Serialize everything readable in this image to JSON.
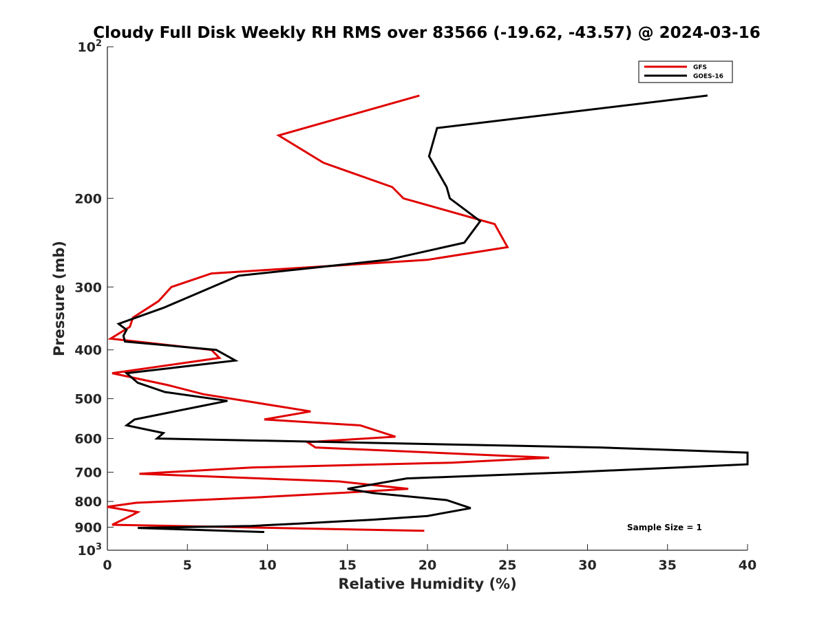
{
  "chart_data": {
    "type": "line",
    "title": "Cloudy Full Disk Weekly RH RMS over 83566 (-19.62, -43.57) @ 2024-03-16",
    "xlabel": "Relative Humidity (%)",
    "ylabel": "Pressure (mb)",
    "xlim": [
      0,
      40
    ],
    "ylim": [
      100,
      1000
    ],
    "yscale": "log",
    "y_reversed": true,
    "grid": false,
    "legend_position": "top-right",
    "x_ticks": [
      0,
      5,
      10,
      15,
      20,
      25,
      30,
      35,
      40
    ],
    "x_tick_labels": [
      "0",
      "5",
      "10",
      "15",
      "20",
      "25",
      "30",
      "35",
      "40"
    ],
    "y_ticks": [
      100,
      200,
      300,
      400,
      500,
      600,
      700,
      800,
      900,
      1000
    ],
    "y_tick_labels": [
      {
        "base": "10",
        "exp": "2"
      },
      {
        "base": "200",
        "exp": ""
      },
      {
        "base": "300",
        "exp": ""
      },
      {
        "base": "400",
        "exp": ""
      },
      {
        "base": "500",
        "exp": ""
      },
      {
        "base": "600",
        "exp": ""
      },
      {
        "base": "700",
        "exp": ""
      },
      {
        "base": "800",
        "exp": ""
      },
      {
        "base": "900",
        "exp": ""
      },
      {
        "base": "10",
        "exp": "3"
      }
    ],
    "annotation": "Sample Size = 1",
    "series": [
      {
        "name": "GFS",
        "color": "#e00000",
        "points": [
          [
            19.5,
            125
          ],
          [
            10.7,
            150
          ],
          [
            13.5,
            170
          ],
          [
            17.8,
            190
          ],
          [
            18.5,
            200
          ],
          [
            24.2,
            225
          ],
          [
            25.0,
            250
          ],
          [
            20.0,
            265
          ],
          [
            6.5,
            282
          ],
          [
            4.0,
            300
          ],
          [
            3.2,
            320
          ],
          [
            1.6,
            345
          ],
          [
            1.4,
            360
          ],
          [
            0.2,
            380
          ],
          [
            6.5,
            400
          ],
          [
            7.0,
            415
          ],
          [
            0.3,
            445
          ],
          [
            3.8,
            470
          ],
          [
            6.0,
            490
          ],
          [
            12.7,
            530
          ],
          [
            9.8,
            550
          ],
          [
            15.8,
            565
          ],
          [
            18.0,
            595
          ],
          [
            12.5,
            610
          ],
          [
            13.0,
            625
          ],
          [
            27.6,
            655
          ],
          [
            21.5,
            670
          ],
          [
            9.0,
            685
          ],
          [
            2.0,
            705
          ],
          [
            14.5,
            730
          ],
          [
            18.8,
            755
          ],
          [
            16.0,
            765
          ],
          [
            9.5,
            785
          ],
          [
            1.8,
            805
          ],
          [
            0.0,
            820
          ],
          [
            1.9,
            840
          ],
          [
            1.6,
            850
          ],
          [
            0.3,
            890
          ],
          [
            19.8,
            915
          ]
        ]
      },
      {
        "name": "GOES-16",
        "color": "#000000",
        "points": [
          [
            37.5,
            125
          ],
          [
            20.6,
            145
          ],
          [
            20.1,
            165
          ],
          [
            21.2,
            190
          ],
          [
            21.4,
            200
          ],
          [
            23.3,
            222
          ],
          [
            22.3,
            245
          ],
          [
            17.5,
            265
          ],
          [
            8.2,
            285
          ],
          [
            5.5,
            310
          ],
          [
            3.5,
            330
          ],
          [
            0.7,
            355
          ],
          [
            1.2,
            365
          ],
          [
            1.0,
            375
          ],
          [
            1.1,
            385
          ],
          [
            6.8,
            400
          ],
          [
            8.0,
            420
          ],
          [
            1.2,
            445
          ],
          [
            1.9,
            465
          ],
          [
            3.6,
            485
          ],
          [
            7.5,
            505
          ],
          [
            5.5,
            520
          ],
          [
            1.7,
            550
          ],
          [
            1.2,
            565
          ],
          [
            3.5,
            585
          ],
          [
            3.1,
            600
          ],
          [
            30.8,
            625
          ],
          [
            40.0,
            640
          ],
          [
            40.0,
            675
          ],
          [
            29.0,
            700
          ],
          [
            18.7,
            720
          ],
          [
            15.0,
            755
          ],
          [
            16.6,
            770
          ],
          [
            21.2,
            795
          ],
          [
            22.7,
            825
          ],
          [
            20.0,
            855
          ],
          [
            16.5,
            870
          ],
          [
            12.0,
            885
          ],
          [
            9.0,
            895
          ],
          [
            1.9,
            903
          ],
          [
            9.8,
            920
          ]
        ]
      }
    ]
  }
}
